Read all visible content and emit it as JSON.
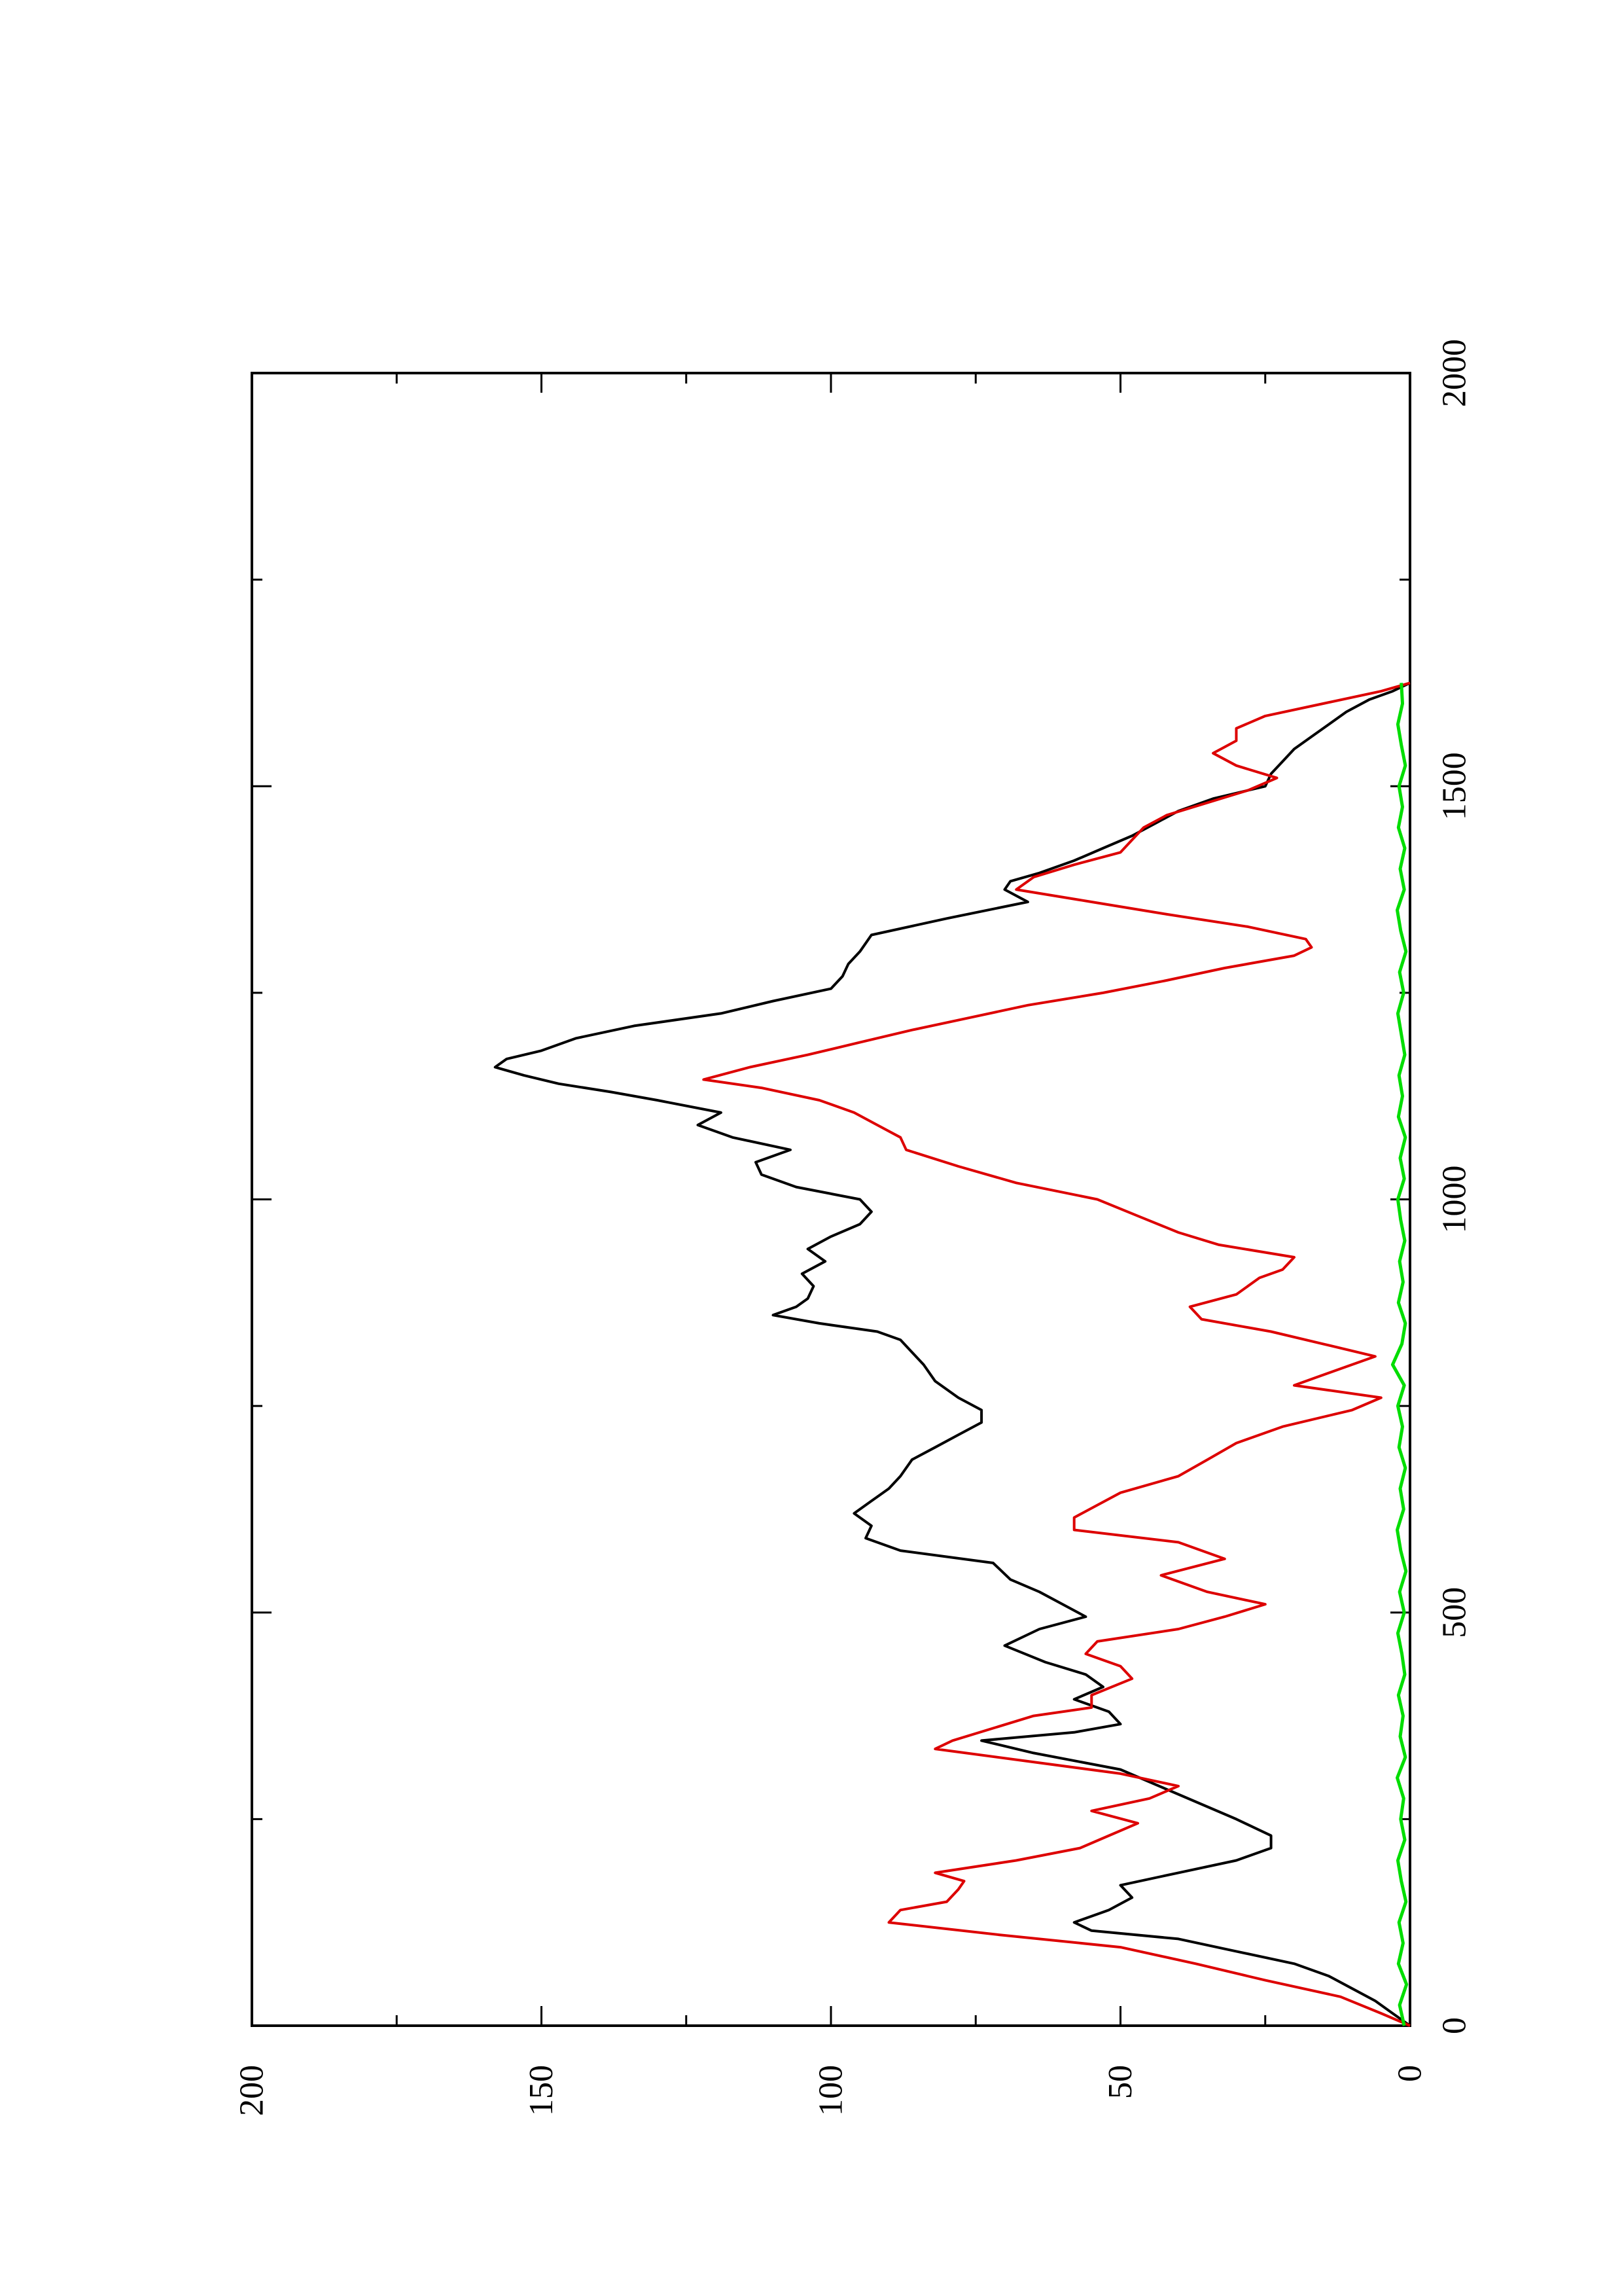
{
  "chart_data": {
    "type": "line",
    "orientation": "rotated-90-ccw",
    "title": "",
    "xlabel": "",
    "ylabel": "",
    "xlim": [
      0,
      2000
    ],
    "ylim": [
      0,
      200
    ],
    "x_ticks": [
      "0",
      "500",
      "1000",
      "1500",
      "2000"
    ],
    "y_ticks": [
      "0",
      "50",
      "100",
      "150",
      "200"
    ],
    "grid": false,
    "legend": "none",
    "series": [
      {
        "color": "#000000",
        "points": [
          [
            0,
            0
          ],
          [
            15,
            3
          ],
          [
            30,
            6
          ],
          [
            45,
            10
          ],
          [
            60,
            14
          ],
          [
            75,
            20
          ],
          [
            90,
            30
          ],
          [
            105,
            40
          ],
          [
            115,
            55
          ],
          [
            125,
            58
          ],
          [
            140,
            52
          ],
          [
            155,
            48
          ],
          [
            170,
            50
          ],
          [
            185,
            40
          ],
          [
            200,
            30
          ],
          [
            215,
            24
          ],
          [
            230,
            24
          ],
          [
            250,
            30
          ],
          [
            280,
            40
          ],
          [
            310,
            50
          ],
          [
            330,
            65
          ],
          [
            345,
            74
          ],
          [
            355,
            58
          ],
          [
            365,
            50
          ],
          [
            380,
            52
          ],
          [
            395,
            58
          ],
          [
            410,
            53
          ],
          [
            425,
            56
          ],
          [
            440,
            63
          ],
          [
            460,
            70
          ],
          [
            480,
            64
          ],
          [
            495,
            56
          ],
          [
            510,
            60
          ],
          [
            525,
            64
          ],
          [
            540,
            69
          ],
          [
            560,
            72
          ],
          [
            575,
            88
          ],
          [
            590,
            94
          ],
          [
            605,
            93
          ],
          [
            620,
            96
          ],
          [
            635,
            93
          ],
          [
            650,
            90
          ],
          [
            665,
            88
          ],
          [
            685,
            86
          ],
          [
            700,
            82
          ],
          [
            715,
            78
          ],
          [
            730,
            74
          ],
          [
            745,
            74
          ],
          [
            760,
            78
          ],
          [
            780,
            82
          ],
          [
            800,
            84
          ],
          [
            815,
            86
          ],
          [
            830,
            88
          ],
          [
            840,
            92
          ],
          [
            850,
            102
          ],
          [
            860,
            110
          ],
          [
            870,
            106
          ],
          [
            880,
            104
          ],
          [
            895,
            103
          ],
          [
            910,
            105
          ],
          [
            925,
            101
          ],
          [
            940,
            104
          ],
          [
            955,
            100
          ],
          [
            970,
            95
          ],
          [
            985,
            93
          ],
          [
            1000,
            95
          ],
          [
            1015,
            106
          ],
          [
            1030,
            112
          ],
          [
            1045,
            113
          ],
          [
            1060,
            107
          ],
          [
            1075,
            117
          ],
          [
            1090,
            123
          ],
          [
            1105,
            119
          ],
          [
            1120,
            130
          ],
          [
            1130,
            138
          ],
          [
            1140,
            147
          ],
          [
            1150,
            153
          ],
          [
            1160,
            158
          ],
          [
            1170,
            156
          ],
          [
            1180,
            150
          ],
          [
            1195,
            144
          ],
          [
            1210,
            134
          ],
          [
            1225,
            119
          ],
          [
            1240,
            110
          ],
          [
            1255,
            100
          ],
          [
            1270,
            98
          ],
          [
            1285,
            97
          ],
          [
            1300,
            95
          ],
          [
            1320,
            93
          ],
          [
            1340,
            80
          ],
          [
            1360,
            66
          ],
          [
            1375,
            70
          ],
          [
            1385,
            69
          ],
          [
            1395,
            64
          ],
          [
            1410,
            58
          ],
          [
            1425,
            53
          ],
          [
            1440,
            48
          ],
          [
            1455,
            44
          ],
          [
            1470,
            40
          ],
          [
            1485,
            34
          ],
          [
            1500,
            25
          ],
          [
            1515,
            24
          ],
          [
            1530,
            22
          ],
          [
            1545,
            20
          ],
          [
            1560,
            17
          ],
          [
            1575,
            14
          ],
          [
            1590,
            11
          ],
          [
            1605,
            7
          ],
          [
            1615,
            3
          ],
          [
            1625,
            0
          ]
        ]
      },
      {
        "color": "#dd0000",
        "points": [
          [
            0,
            0
          ],
          [
            15,
            5
          ],
          [
            35,
            12
          ],
          [
            55,
            25
          ],
          [
            75,
            37
          ],
          [
            95,
            50
          ],
          [
            110,
            71
          ],
          [
            125,
            90
          ],
          [
            140,
            88
          ],
          [
            150,
            80
          ],
          [
            165,
            78
          ],
          [
            175,
            77
          ],
          [
            185,
            82
          ],
          [
            200,
            68
          ],
          [
            215,
            57
          ],
          [
            230,
            52
          ],
          [
            245,
            47
          ],
          [
            260,
            55
          ],
          [
            275,
            45
          ],
          [
            290,
            40
          ],
          [
            305,
            50
          ],
          [
            320,
            66
          ],
          [
            335,
            82
          ],
          [
            345,
            79
          ],
          [
            360,
            72
          ],
          [
            375,
            65
          ],
          [
            385,
            55
          ],
          [
            400,
            55
          ],
          [
            420,
            48
          ],
          [
            435,
            50
          ],
          [
            450,
            56
          ],
          [
            465,
            54
          ],
          [
            480,
            40
          ],
          [
            495,
            32
          ],
          [
            510,
            25
          ],
          [
            525,
            35
          ],
          [
            545,
            43
          ],
          [
            565,
            32
          ],
          [
            585,
            40
          ],
          [
            600,
            58
          ],
          [
            615,
            58
          ],
          [
            630,
            54
          ],
          [
            645,
            50
          ],
          [
            665,
            40
          ],
          [
            685,
            35
          ],
          [
            705,
            30
          ],
          [
            725,
            22
          ],
          [
            745,
            10
          ],
          [
            760,
            5
          ],
          [
            775,
            20
          ],
          [
            785,
            16
          ],
          [
            795,
            12
          ],
          [
            810,
            6
          ],
          [
            825,
            15
          ],
          [
            840,
            24
          ],
          [
            855,
            36
          ],
          [
            870,
            38
          ],
          [
            885,
            30
          ],
          [
            905,
            26
          ],
          [
            915,
            22
          ],
          [
            930,
            20
          ],
          [
            945,
            33
          ],
          [
            960,
            40
          ],
          [
            980,
            47
          ],
          [
            1000,
            54
          ],
          [
            1020,
            68
          ],
          [
            1040,
            78
          ],
          [
            1060,
            87
          ],
          [
            1075,
            88
          ],
          [
            1090,
            92
          ],
          [
            1105,
            96
          ],
          [
            1120,
            102
          ],
          [
            1135,
            112
          ],
          [
            1145,
            122
          ],
          [
            1160,
            114
          ],
          [
            1175,
            104
          ],
          [
            1190,
            95
          ],
          [
            1205,
            86
          ],
          [
            1220,
            76
          ],
          [
            1235,
            66
          ],
          [
            1250,
            53
          ],
          [
            1265,
            42
          ],
          [
            1280,
            32
          ],
          [
            1295,
            20
          ],
          [
            1305,
            17
          ],
          [
            1315,
            18
          ],
          [
            1330,
            28
          ],
          [
            1345,
            42
          ],
          [
            1360,
            55
          ],
          [
            1375,
            68
          ],
          [
            1390,
            65
          ],
          [
            1405,
            58
          ],
          [
            1420,
            50
          ],
          [
            1435,
            48
          ],
          [
            1450,
            46
          ],
          [
            1465,
            42
          ],
          [
            1480,
            35
          ],
          [
            1495,
            28
          ],
          [
            1510,
            23
          ],
          [
            1525,
            30
          ],
          [
            1540,
            34
          ],
          [
            1555,
            30
          ],
          [
            1570,
            30
          ],
          [
            1585,
            25
          ],
          [
            1600,
            15
          ],
          [
            1615,
            5
          ],
          [
            1625,
            0
          ]
        ]
      },
      {
        "color": "#00dd00",
        "points": [
          [
            0,
            1.0
          ],
          [
            25,
            1.8
          ],
          [
            50,
            0.6
          ],
          [
            75,
            2.0
          ],
          [
            100,
            1.2
          ],
          [
            125,
            1.9
          ],
          [
            150,
            0.7
          ],
          [
            175,
            1.5
          ],
          [
            200,
            2.1
          ],
          [
            225,
            0.9
          ],
          [
            250,
            1.6
          ],
          [
            275,
            1.1
          ],
          [
            300,
            2.2
          ],
          [
            325,
            0.8
          ],
          [
            350,
            1.7
          ],
          [
            375,
            1.2
          ],
          [
            400,
            2.0
          ],
          [
            425,
            0.9
          ],
          [
            450,
            1.4
          ],
          [
            475,
            2.1
          ],
          [
            500,
            1.0
          ],
          [
            525,
            1.8
          ],
          [
            550,
            0.7
          ],
          [
            575,
            1.6
          ],
          [
            600,
            2.2
          ],
          [
            625,
            1.1
          ],
          [
            650,
            1.7
          ],
          [
            675,
            0.8
          ],
          [
            700,
            1.9
          ],
          [
            725,
            1.3
          ],
          [
            750,
            2.1
          ],
          [
            775,
            1.0
          ],
          [
            800,
            3.0
          ],
          [
            825,
            1.4
          ],
          [
            850,
            0.8
          ],
          [
            875,
            2.0
          ],
          [
            900,
            1.2
          ],
          [
            925,
            1.8
          ],
          [
            950,
            0.9
          ],
          [
            975,
            1.6
          ],
          [
            1000,
            2.1
          ],
          [
            1025,
            1.0
          ],
          [
            1050,
            1.7
          ],
          [
            1075,
            0.8
          ],
          [
            1100,
            2.0
          ],
          [
            1125,
            1.3
          ],
          [
            1150,
            1.9
          ],
          [
            1175,
            0.9
          ],
          [
            1200,
            1.5
          ],
          [
            1225,
            2.1
          ],
          [
            1250,
            1.1
          ],
          [
            1275,
            1.8
          ],
          [
            1300,
            0.7
          ],
          [
            1325,
            1.6
          ],
          [
            1350,
            2.2
          ],
          [
            1375,
            1.0
          ],
          [
            1400,
            1.7
          ],
          [
            1425,
            0.9
          ],
          [
            1450,
            2.0
          ],
          [
            1475,
            1.3
          ],
          [
            1500,
            1.9
          ],
          [
            1525,
            0.8
          ],
          [
            1550,
            1.5
          ],
          [
            1575,
            2.1
          ],
          [
            1600,
            1.3
          ],
          [
            1625,
            1.5
          ]
        ]
      }
    ]
  }
}
